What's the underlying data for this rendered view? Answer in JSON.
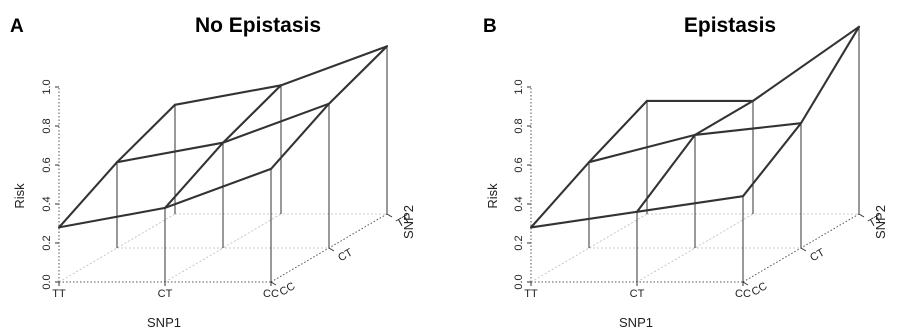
{
  "chart_data": [
    {
      "type": "surface3d",
      "panel_letter": "A",
      "title": "No Epistasis",
      "xlabel": "SNP1",
      "ylabel": "SNP2",
      "zlabel": "Risk",
      "x_categories": [
        "TT",
        "CT",
        "CC"
      ],
      "y_categories": [
        "CC",
        "CT",
        "TT"
      ],
      "zlim": [
        0.0,
        1.0
      ],
      "z_ticks": [
        "0.0",
        "0.2",
        "0.4",
        "0.6",
        "0.8",
        "1.0"
      ],
      "grid": [
        [
          0.28,
          0.38,
          0.58
        ],
        [
          0.44,
          0.54,
          0.74
        ],
        [
          0.56,
          0.66,
          0.86
        ]
      ]
    },
    {
      "type": "surface3d",
      "panel_letter": "B",
      "title": "Epistasis",
      "xlabel": "SNP1",
      "ylabel": "SNP2",
      "zlabel": "Risk",
      "x_categories": [
        "TT",
        "CT",
        "CC"
      ],
      "y_categories": [
        "CC",
        "CT",
        "TT"
      ],
      "zlim": [
        0.0,
        1.0
      ],
      "z_ticks": [
        "0.0",
        "0.2",
        "0.4",
        "0.6",
        "0.8",
        "1.0"
      ],
      "grid": [
        [
          0.28,
          0.36,
          0.44
        ],
        [
          0.44,
          0.58,
          0.64
        ],
        [
          0.58,
          0.58,
          0.96
        ]
      ]
    }
  ]
}
